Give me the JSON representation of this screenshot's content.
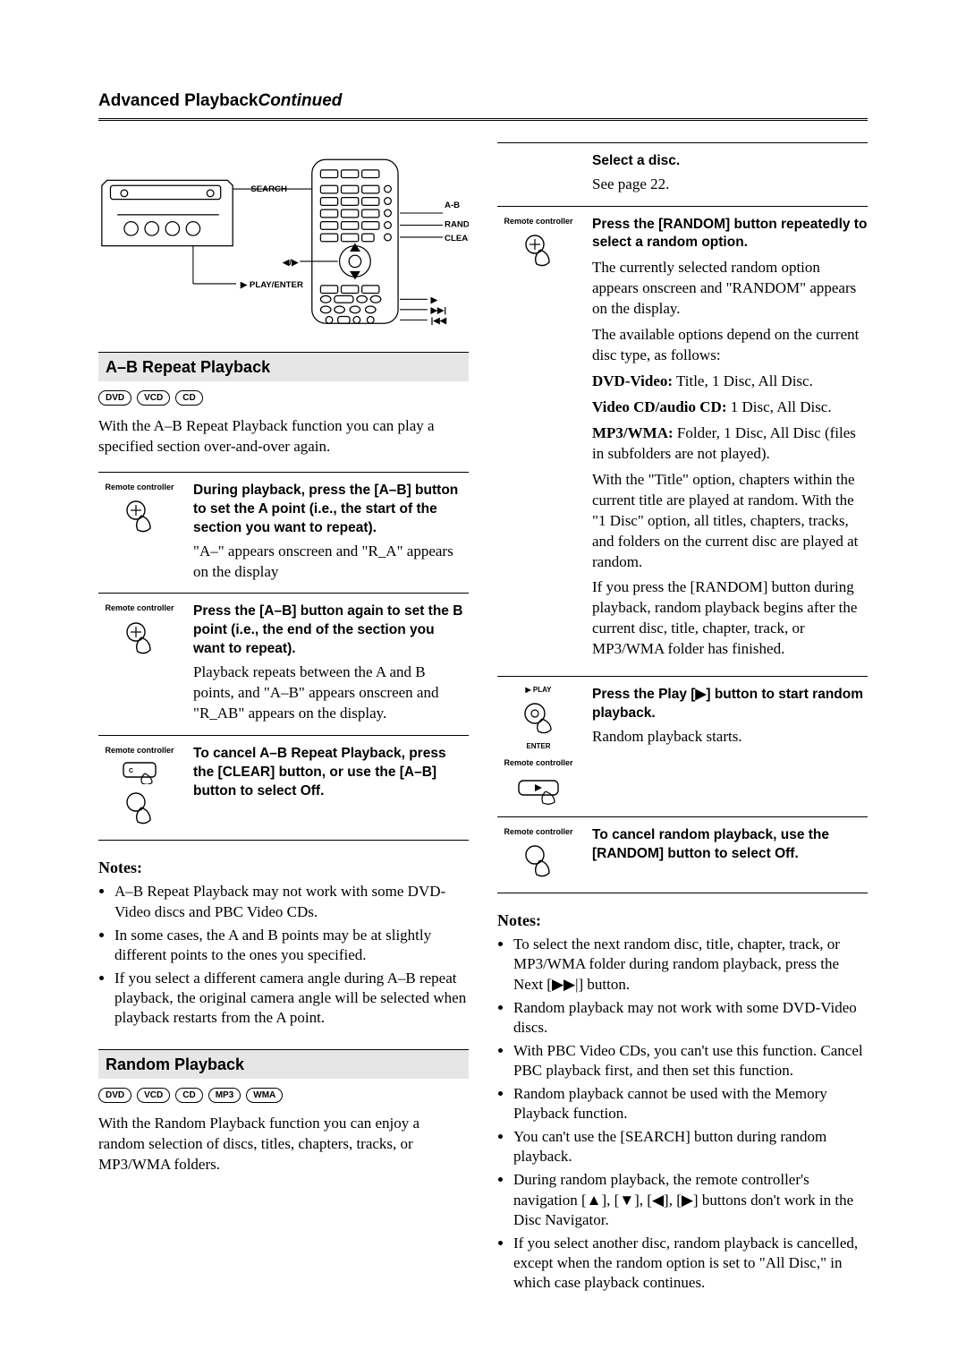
{
  "header": {
    "title": "Advanced Playback",
    "continued": "Continued"
  },
  "colors": {
    "section_bg": "#e6e6e6",
    "rule": "#000000",
    "text": "#000000"
  },
  "diagram": {
    "labels": {
      "search": "SEARCH",
      "ab": "A-B",
      "random": "RANDOM",
      "clear": "CLEAR",
      "play_enter": "PLAY/ENTER",
      "nav_lr": "◀/▶",
      "next": "▶▶|",
      "prev": "|◀◀",
      "play": "▶"
    }
  },
  "ab_section": {
    "title": "A–B Repeat Playback",
    "badges": [
      "DVD",
      "VCD",
      "CD"
    ],
    "intro": "With the A–B Repeat Playback function you can play a specified section over-and-over again.",
    "rc_label": "Remote controller",
    "steps": [
      {
        "bold": "During playback, press the [A–B] button to set the A point (i.e., the start of the section you want to repeat).",
        "body": "\"A–\" appears onscreen and \"R_A\" appears on the display"
      },
      {
        "bold": "Press the [A–B] button again to set the B point (i.e., the end of the section you want to repeat).",
        "body": "Playback repeats between the A and B points, and \"A–B\" appears onscreen and \"R_AB\" appears on the display."
      },
      {
        "bold": "To cancel A–B Repeat Playback, press the [CLEAR] button, or use the [A–B] button to select Off.",
        "body": ""
      }
    ],
    "notes_heading": "Notes:",
    "notes": [
      "A–B Repeat Playback may not work with some DVD-Video discs and PBC Video CDs.",
      "In some cases, the A and B points may be at slightly different points to the ones you specified.",
      "If you select a different camera angle during A–B repeat playback, the original camera angle will be selected when playback restarts from the A point."
    ]
  },
  "random_section": {
    "title": "Random Playback",
    "badges": [
      "DVD",
      "VCD",
      "CD",
      "MP3",
      "WMA"
    ],
    "intro": "With the Random Playback function you can enjoy a random selection of discs, titles, chapters, tracks, or MP3/WMA folders.",
    "rc_label": "Remote controller",
    "play_label": "PLAY",
    "enter_label": "ENTER",
    "steps": [
      {
        "bold": "Select a disc.",
        "body_plain": "See page 22.",
        "icon": "none"
      },
      {
        "bold": "Press the [RANDOM] button repeatedly to select a random option.",
        "body_html_parts": [
          {
            "t": "p",
            "v": "The currently selected random option appears onscreen and \"RANDOM\" appears on the display."
          },
          {
            "t": "p",
            "v": "The available options depend on the current disc type, as follows:"
          },
          {
            "t": "pb",
            "b": "DVD-Video:",
            "v": " Title, 1 Disc, All Disc."
          },
          {
            "t": "pb",
            "b": "Video CD/audio CD:",
            "v": " 1 Disc, All Disc."
          },
          {
            "t": "pb",
            "b": "MP3/WMA:",
            "v": " Folder, 1 Disc, All Disc (files in subfolders are not played)."
          },
          {
            "t": "p",
            "v": "With the \"Title\" option, chapters within the current title are played at random. With the \"1 Disc\" option, all titles, chapters, tracks, and folders on the current disc are played at random."
          },
          {
            "t": "p",
            "v": "If you press the [RANDOM] button during playback, random playback begins after the current disc, title, chapter, track, or MP3/WMA folder has finished."
          }
        ],
        "icon": "hand"
      },
      {
        "bold": "Press the Play [▶] button to start random playback.",
        "body_plain": "Random playback starts.",
        "icon": "play-enter"
      },
      {
        "bold": "To cancel random playback, use the [RANDOM] button to select Off.",
        "body_plain": "",
        "icon": "hand"
      }
    ],
    "notes_heading": "Notes:",
    "notes": [
      "To select the next random disc, title, chapter, track, or MP3/WMA folder during random playback, press the Next [▶▶|] button.",
      "Random playback may not work with some DVD-Video discs.",
      "With PBC Video CDs, you can't use this function. Cancel PBC playback first, and then set this function.",
      "Random playback cannot be used with the Memory Playback function.",
      "You can't use the [SEARCH] button during random playback.",
      "During random playback, the remote controller's navigation [▲], [▼], [◀], [▶] buttons don't work in the Disc Navigator.",
      "If you select another disc, random playback is cancelled, except when the random option is set to \"All Disc,\" in which case playback continues."
    ]
  }
}
